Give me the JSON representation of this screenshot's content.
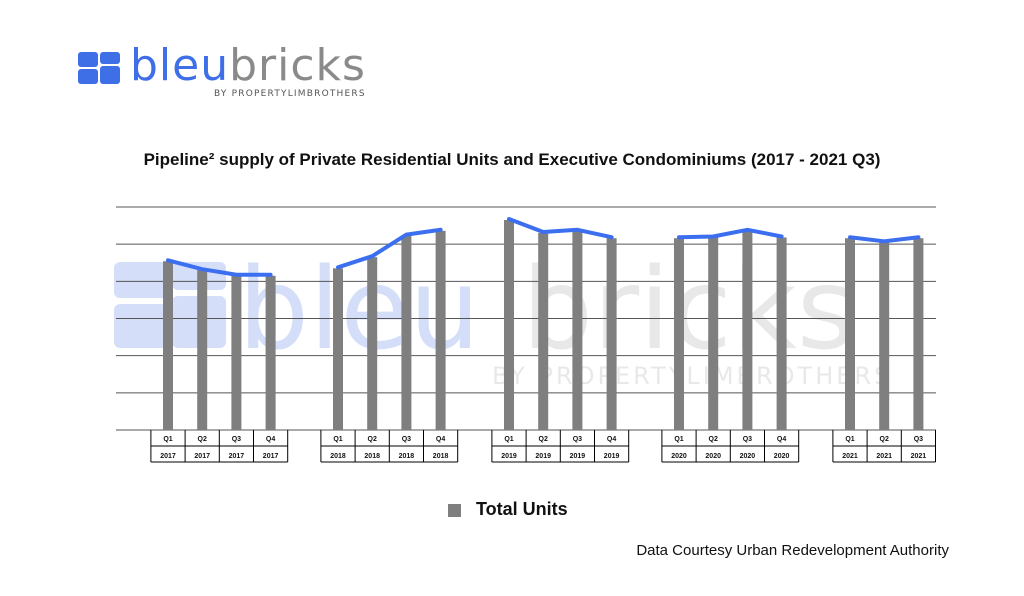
{
  "brand": {
    "name_part1": "bleu",
    "name_part2": "bricks",
    "tagline": "BY PROPERTYLIMBROTHERS",
    "primary_color": "#3f6fe6",
    "secondary_color": "#8a8a8a",
    "mark_icon": "bleubricks-logo-mark"
  },
  "chart_data": {
    "type": "bar",
    "title": "Pipeline² supply of Private Residential Units and Executive Condominiums (2017 - 2021 Q3)",
    "categories": [
      {
        "quarter": "Q1",
        "year": "2017"
      },
      {
        "quarter": "Q2",
        "year": "2017"
      },
      {
        "quarter": "Q3",
        "year": "2017"
      },
      {
        "quarter": "Q4",
        "year": "2017"
      },
      {
        "quarter": "Q1",
        "year": "2018"
      },
      {
        "quarter": "Q2",
        "year": "2018"
      },
      {
        "quarter": "Q3",
        "year": "2018"
      },
      {
        "quarter": "Q4",
        "year": "2018"
      },
      {
        "quarter": "Q1",
        "year": "2019"
      },
      {
        "quarter": "Q2",
        "year": "2019"
      },
      {
        "quarter": "Q3",
        "year": "2019"
      },
      {
        "quarter": "Q4",
        "year": "2019"
      },
      {
        "quarter": "Q1",
        "year": "2020"
      },
      {
        "quarter": "Q2",
        "year": "2020"
      },
      {
        "quarter": "Q3",
        "year": "2020"
      },
      {
        "quarter": "Q4",
        "year": "2020"
      },
      {
        "quarter": "Q1",
        "year": "2021"
      },
      {
        "quarter": "Q2",
        "year": "2021"
      },
      {
        "quarter": "Q3",
        "year": "2021"
      }
    ],
    "series": [
      {
        "name": "Total Units",
        "color": "#7f7f7f",
        "trend_line_color": "#3c6ff0",
        "values": [
          45.4,
          43.0,
          41.5,
          41.5,
          43.5,
          46.5,
          52.3,
          53.6,
          56.5,
          53.0,
          53.6,
          51.6,
          51.6,
          51.8,
          53.6,
          51.8,
          51.6,
          50.5,
          51.6
        ]
      }
    ],
    "ylim": [
      0,
      60
    ],
    "y_gridlines": [
      0,
      10,
      20,
      30,
      40,
      50,
      60
    ],
    "grid": true,
    "legend": "bottom-center",
    "watermark": {
      "main_left": "bleu",
      "main_right": "bricks",
      "sub": "BY PROPERTYLIMBROTHERS"
    }
  },
  "credit": "Data Courtesy Urban Redevelopment Authority"
}
